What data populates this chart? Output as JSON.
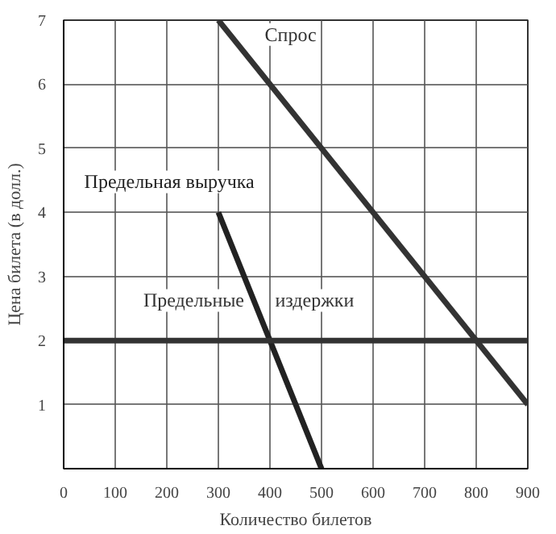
{
  "chart_data": {
    "type": "line",
    "xlabel": "Количество билетов",
    "ylabel": "Цена билета (в долл.)",
    "xlim": [
      0,
      900
    ],
    "ylim": [
      0,
      7
    ],
    "xticks": [
      0,
      100,
      200,
      300,
      400,
      500,
      600,
      700,
      800,
      900
    ],
    "yticks": [
      1,
      2,
      3,
      4,
      5,
      6,
      7
    ],
    "grid": true,
    "series": [
      {
        "name": "Спрос",
        "color": "#333333",
        "x": [
          300,
          900
        ],
        "values": [
          7,
          1
        ]
      },
      {
        "name": "Предельная выручка",
        "color": "#222222",
        "x": [
          300,
          500
        ],
        "values": [
          4,
          0
        ]
      },
      {
        "name": "Предельные издержки",
        "color": "#333333",
        "x": [
          0,
          900
        ],
        "values": [
          2,
          2
        ]
      }
    ]
  }
}
